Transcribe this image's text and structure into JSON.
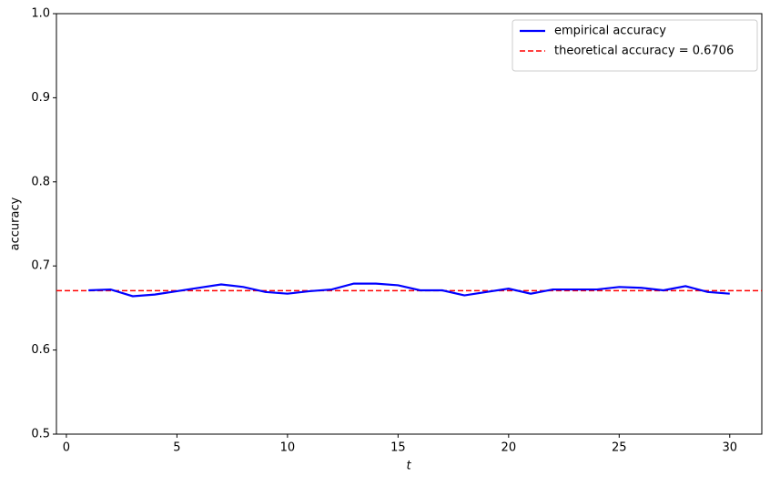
{
  "chart_data": {
    "type": "line",
    "x_label": "t",
    "y_label": "accuracy",
    "x": [
      1,
      2,
      3,
      4,
      5,
      6,
      7,
      8,
      9,
      10,
      11,
      12,
      13,
      14,
      15,
      16,
      17,
      18,
      19,
      20,
      21,
      22,
      23,
      24,
      25,
      26,
      27,
      28,
      29,
      30
    ],
    "series": [
      {
        "name": "empirical accuracy",
        "color": "#0000ff",
        "values": [
          0.671,
          0.672,
          0.664,
          0.666,
          0.67,
          0.674,
          0.678,
          0.675,
          0.669,
          0.667,
          0.67,
          0.672,
          0.679,
          0.679,
          0.677,
          0.671,
          0.671,
          0.665,
          0.669,
          0.673,
          0.667,
          0.672,
          0.672,
          0.672,
          0.675,
          0.674,
          0.671,
          0.676,
          0.669,
          0.667
        ]
      }
    ],
    "hlines": [
      {
        "name": "theoretical accuracy = 0.6706",
        "value": 0.6706,
        "color": "#ff0000"
      }
    ],
    "xlim": [
      -0.45,
      31.45
    ],
    "xticks": [
      0,
      5,
      10,
      15,
      20,
      25,
      30
    ],
    "ylim": [
      0.5,
      1.0
    ],
    "yticks": [
      0.5,
      0.6,
      0.7,
      0.8,
      0.9,
      {
        "value": 1.0,
        "label": "1.0"
      }
    ],
    "legend": "upper right",
    "grid": false
  }
}
